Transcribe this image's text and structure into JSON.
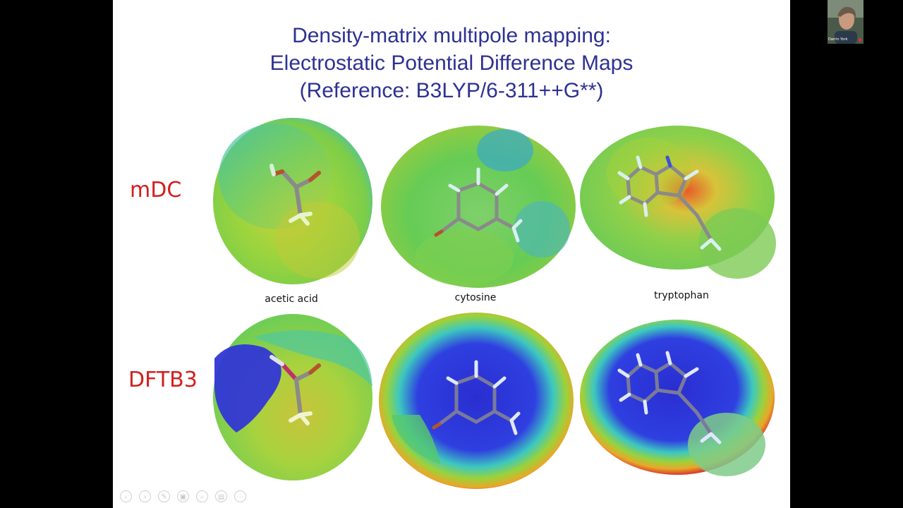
{
  "slide": {
    "title_lines": [
      "Density-matrix multipole mapping:",
      "Electrostatic Potential Difference Maps",
      "(Reference: B3LYP/6-311++G**)"
    ],
    "row_labels": [
      "mDC",
      "DFTB3"
    ],
    "molecules": [
      "acetic acid",
      "cytosine",
      "tryptophan"
    ]
  },
  "video": {
    "participant_name": "Darrin York"
  },
  "toolbar": {
    "icons": [
      "prev-icon",
      "next-icon",
      "pen-icon",
      "slides-icon",
      "zoom-icon",
      "subtitles-icon",
      "more-icon"
    ]
  },
  "colors": {
    "title": "#2e3192",
    "row_label": "#d21f1f",
    "background": "#000000"
  }
}
